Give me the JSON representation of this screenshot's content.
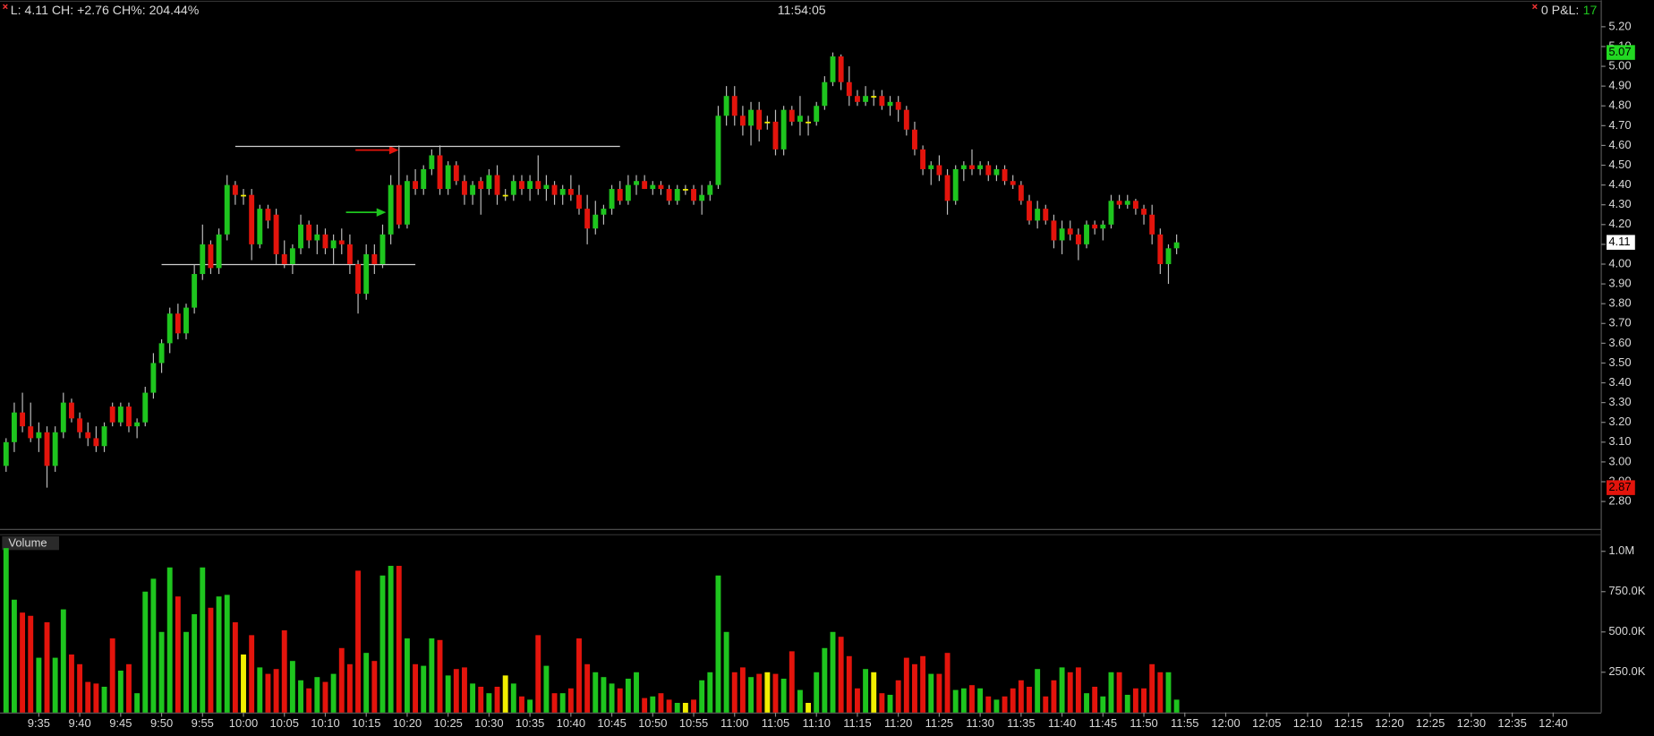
{
  "header": {
    "quote": "L: 4.11 CH: +2.76 CH%: 204.44%",
    "clock": "11:54:05",
    "pnl_label": "0 P&L:",
    "pnl_value": "17"
  },
  "chart_data": {
    "type": "candlestick",
    "volume_title": "Volume",
    "colors": {
      "up": "#1ec51e",
      "down": "#e3140c",
      "flat": "#f2ee00"
    },
    "categories": [
      null,
      null,
      null,
      null,
      "9:35",
      null,
      null,
      null,
      null,
      "9:40",
      null,
      null,
      null,
      null,
      "9:45",
      null,
      null,
      null,
      null,
      "9:50",
      null,
      null,
      null,
      null,
      "9:55",
      null,
      null,
      null,
      null,
      "10:00",
      null,
      null,
      null,
      null,
      "10:05",
      null,
      null,
      null,
      null,
      "10:10",
      null,
      null,
      null,
      null,
      "10:15",
      null,
      null,
      null,
      null,
      "10:20",
      null,
      null,
      null,
      null,
      "10:25",
      null,
      null,
      null,
      null,
      "10:30",
      null,
      null,
      null,
      null,
      "10:35",
      null,
      null,
      null,
      null,
      "10:40",
      null,
      null,
      null,
      null,
      "10:45",
      null,
      null,
      null,
      null,
      "10:50",
      null,
      null,
      null,
      null,
      "10:55",
      null,
      null,
      null,
      null,
      "11:00",
      null,
      null,
      null,
      null,
      "11:05",
      null,
      null,
      null,
      null,
      "11:10",
      null,
      null,
      null,
      null,
      "11:15",
      null,
      null,
      null,
      null,
      "11:20",
      null,
      null,
      null,
      null,
      "11:25",
      null,
      null,
      null,
      null,
      "11:30",
      null,
      null,
      null,
      null,
      "11:35",
      null,
      null,
      null,
      null,
      "11:40",
      null,
      null,
      null,
      null,
      "11:45",
      null,
      null,
      null,
      null,
      "11:50",
      null,
      null,
      null,
      null,
      "11:55",
      null,
      null,
      null,
      null,
      "12:00",
      null,
      null,
      null,
      null,
      "12:05",
      null,
      null,
      null,
      null,
      "12:10",
      null,
      null,
      null,
      null,
      "12:15",
      null,
      null,
      null,
      null,
      "12:20",
      null,
      null,
      null,
      null,
      "12:25",
      null,
      null,
      null,
      null,
      "12:30",
      null,
      null,
      null,
      null,
      "12:35",
      null,
      null,
      null,
      null,
      "12:40"
    ],
    "ohlc": [
      [
        2.98,
        3.12,
        2.95,
        3.1
      ],
      [
        3.1,
        3.3,
        3.05,
        3.25
      ],
      [
        3.25,
        3.35,
        3.15,
        3.18
      ],
      [
        3.18,
        3.3,
        3.1,
        3.12
      ],
      [
        3.12,
        3.2,
        3.05,
        3.15
      ],
      [
        3.15,
        3.18,
        2.87,
        2.98
      ],
      [
        2.98,
        3.18,
        2.95,
        3.15
      ],
      [
        3.15,
        3.35,
        3.12,
        3.3
      ],
      [
        3.3,
        3.32,
        3.2,
        3.22
      ],
      [
        3.22,
        3.25,
        3.12,
        3.15
      ],
      [
        3.15,
        3.2,
        3.08,
        3.12
      ],
      [
        3.12,
        3.18,
        3.05,
        3.08
      ],
      [
        3.08,
        3.2,
        3.05,
        3.18
      ],
      [
        3.28,
        3.3,
        3.18,
        3.2
      ],
      [
        3.2,
        3.3,
        3.18,
        3.28
      ],
      [
        3.28,
        3.3,
        3.15,
        3.18
      ],
      [
        3.18,
        3.22,
        3.12,
        3.2
      ],
      [
        3.2,
        3.38,
        3.18,
        3.35
      ],
      [
        3.35,
        3.55,
        3.32,
        3.5
      ],
      [
        3.5,
        3.62,
        3.45,
        3.6
      ],
      [
        3.6,
        3.78,
        3.55,
        3.75
      ],
      [
        3.75,
        3.8,
        3.62,
        3.65
      ],
      [
        3.65,
        3.8,
        3.62,
        3.78
      ],
      [
        3.78,
        4.0,
        3.75,
        3.95
      ],
      [
        3.95,
        4.2,
        3.92,
        4.1
      ],
      [
        4.1,
        4.12,
        3.95,
        3.98
      ],
      [
        3.98,
        4.18,
        3.95,
        4.15
      ],
      [
        4.15,
        4.45,
        4.12,
        4.4
      ],
      [
        4.4,
        4.42,
        4.3,
        4.35
      ],
      [
        4.35,
        4.38,
        4.3,
        4.35
      ],
      [
        4.35,
        4.38,
        4.02,
        4.1
      ],
      [
        4.1,
        4.3,
        4.08,
        4.28
      ],
      [
        4.28,
        4.3,
        4.18,
        4.22
      ],
      [
        4.25,
        4.28,
        4.0,
        4.05
      ],
      [
        4.05,
        4.12,
        3.98,
        4.0
      ],
      [
        4.0,
        4.1,
        3.95,
        4.08
      ],
      [
        4.08,
        4.25,
        4.05,
        4.2
      ],
      [
        4.2,
        4.22,
        4.08,
        4.12
      ],
      [
        4.12,
        4.2,
        4.05,
        4.15
      ],
      [
        4.15,
        4.18,
        4.05,
        4.08
      ],
      [
        4.08,
        4.15,
        4.0,
        4.12
      ],
      [
        4.12,
        4.18,
        4.05,
        4.1
      ],
      [
        4.1,
        4.15,
        3.95,
        4.0
      ],
      [
        4.0,
        4.02,
        3.75,
        3.85
      ],
      [
        3.85,
        4.1,
        3.82,
        4.05
      ],
      [
        4.05,
        4.1,
        3.95,
        4.0
      ],
      [
        4.0,
        4.2,
        3.98,
        4.15
      ],
      [
        4.15,
        4.45,
        4.1,
        4.4
      ],
      [
        4.4,
        4.6,
        4.18,
        4.2
      ],
      [
        4.2,
        4.45,
        4.18,
        4.42
      ],
      [
        4.42,
        4.48,
        4.35,
        4.38
      ],
      [
        4.38,
        4.5,
        4.35,
        4.48
      ],
      [
        4.48,
        4.58,
        4.45,
        4.55
      ],
      [
        4.55,
        4.6,
        4.35,
        4.38
      ],
      [
        4.38,
        4.52,
        4.35,
        4.5
      ],
      [
        4.5,
        4.52,
        4.4,
        4.42
      ],
      [
        4.42,
        4.45,
        4.3,
        4.35
      ],
      [
        4.35,
        4.42,
        4.3,
        4.4
      ],
      [
        4.42,
        4.44,
        4.25,
        4.38
      ],
      [
        4.38,
        4.48,
        4.35,
        4.45
      ],
      [
        4.45,
        4.5,
        4.3,
        4.35
      ],
      [
        4.35,
        4.38,
        4.32,
        4.35
      ],
      [
        4.35,
        4.45,
        4.32,
        4.42
      ],
      [
        4.42,
        4.45,
        4.35,
        4.38
      ],
      [
        4.38,
        4.45,
        4.32,
        4.42
      ],
      [
        4.42,
        4.55,
        4.35,
        4.38
      ],
      [
        4.38,
        4.45,
        4.32,
        4.4
      ],
      [
        4.4,
        4.42,
        4.3,
        4.35
      ],
      [
        4.35,
        4.4,
        4.3,
        4.38
      ],
      [
        4.38,
        4.45,
        4.32,
        4.35
      ],
      [
        4.35,
        4.4,
        4.25,
        4.28
      ],
      [
        4.28,
        4.35,
        4.1,
        4.18
      ],
      [
        4.18,
        4.32,
        4.15,
        4.25
      ],
      [
        4.25,
        4.3,
        4.2,
        4.28
      ],
      [
        4.28,
        4.4,
        4.25,
        4.38
      ],
      [
        4.38,
        4.42,
        4.3,
        4.32
      ],
      [
        4.32,
        4.45,
        4.3,
        4.4
      ],
      [
        4.4,
        4.45,
        4.35,
        4.42
      ],
      [
        4.42,
        4.45,
        4.38,
        4.38
      ],
      [
        4.38,
        4.42,
        4.35,
        4.4
      ],
      [
        4.4,
        4.42,
        4.35,
        4.38
      ],
      [
        4.38,
        4.4,
        4.3,
        4.32
      ],
      [
        4.32,
        4.4,
        4.3,
        4.38
      ],
      [
        4.38,
        4.4,
        4.35,
        4.38
      ],
      [
        4.38,
        4.4,
        4.3,
        4.32
      ],
      [
        4.32,
        4.4,
        4.25,
        4.35
      ],
      [
        4.35,
        4.42,
        4.32,
        4.4
      ],
      [
        4.4,
        4.8,
        4.38,
        4.75
      ],
      [
        4.75,
        4.9,
        4.7,
        4.85
      ],
      [
        4.85,
        4.9,
        4.7,
        4.75
      ],
      [
        4.75,
        4.8,
        4.65,
        4.7
      ],
      [
        4.7,
        4.82,
        4.6,
        4.78
      ],
      [
        4.78,
        4.82,
        4.62,
        4.68
      ],
      [
        4.72,
        4.75,
        4.68,
        4.72
      ],
      [
        4.72,
        4.78,
        4.55,
        4.58
      ],
      [
        4.58,
        4.8,
        4.55,
        4.78
      ],
      [
        4.78,
        4.8,
        4.7,
        4.72
      ],
      [
        4.72,
        4.85,
        4.65,
        4.75
      ],
      [
        4.72,
        4.75,
        4.65,
        4.72
      ],
      [
        4.72,
        4.82,
        4.7,
        4.8
      ],
      [
        4.8,
        4.95,
        4.78,
        4.92
      ],
      [
        4.92,
        5.07,
        4.9,
        5.05
      ],
      [
        5.05,
        5.06,
        4.88,
        4.92
      ],
      [
        4.92,
        5.0,
        4.8,
        4.85
      ],
      [
        4.85,
        4.88,
        4.8,
        4.82
      ],
      [
        4.82,
        4.9,
        4.8,
        4.85
      ],
      [
        4.85,
        4.88,
        4.8,
        4.85
      ],
      [
        4.85,
        4.88,
        4.78,
        4.8
      ],
      [
        4.8,
        4.85,
        4.75,
        4.82
      ],
      [
        4.82,
        4.85,
        4.72,
        4.78
      ],
      [
        4.78,
        4.8,
        4.65,
        4.68
      ],
      [
        4.68,
        4.72,
        4.55,
        4.58
      ],
      [
        4.58,
        4.6,
        4.45,
        4.48
      ],
      [
        4.48,
        4.52,
        4.4,
        4.5
      ],
      [
        4.5,
        4.55,
        4.42,
        4.45
      ],
      [
        4.45,
        4.48,
        4.25,
        4.32
      ],
      [
        4.32,
        4.5,
        4.3,
        4.48
      ],
      [
        4.48,
        4.52,
        4.42,
        4.5
      ],
      [
        4.5,
        4.58,
        4.45,
        4.48
      ],
      [
        4.48,
        4.52,
        4.45,
        4.5
      ],
      [
        4.5,
        4.52,
        4.42,
        4.45
      ],
      [
        4.45,
        4.5,
        4.42,
        4.48
      ],
      [
        4.48,
        4.5,
        4.4,
        4.42
      ],
      [
        4.42,
        4.45,
        4.38,
        4.4
      ],
      [
        4.4,
        4.42,
        4.3,
        4.32
      ],
      [
        4.32,
        4.35,
        4.2,
        4.22
      ],
      [
        4.22,
        4.32,
        4.18,
        4.28
      ],
      [
        4.28,
        4.3,
        4.2,
        4.22
      ],
      [
        4.22,
        4.25,
        4.08,
        4.12
      ],
      [
        4.12,
        4.22,
        4.05,
        4.18
      ],
      [
        4.18,
        4.22,
        4.12,
        4.15
      ],
      [
        4.15,
        4.18,
        4.02,
        4.1
      ],
      [
        4.1,
        4.22,
        4.08,
        4.2
      ],
      [
        4.2,
        4.22,
        4.15,
        4.18
      ],
      [
        4.18,
        4.22,
        4.12,
        4.2
      ],
      [
        4.2,
        4.35,
        4.18,
        4.32
      ],
      [
        4.32,
        4.35,
        4.28,
        4.3
      ],
      [
        4.3,
        4.35,
        4.28,
        4.32
      ],
      [
        4.32,
        4.33,
        4.25,
        4.28
      ],
      [
        4.28,
        4.3,
        4.2,
        4.25
      ],
      [
        4.25,
        4.3,
        4.1,
        4.15
      ],
      [
        4.15,
        4.18,
        3.95,
        4.0
      ],
      [
        4.0,
        4.1,
        3.9,
        4.08
      ],
      [
        4.08,
        4.15,
        4.05,
        4.11
      ],
      null,
      null,
      null,
      null,
      null,
      null,
      null,
      null,
      null,
      null,
      null,
      null,
      null,
      null,
      null,
      null,
      null,
      null,
      null,
      null,
      null,
      null,
      null,
      null,
      null,
      null,
      null,
      null,
      null,
      null,
      null,
      null,
      null,
      null,
      null,
      null,
      null,
      null,
      null,
      null,
      null,
      null,
      null,
      null,
      null,
      null
    ],
    "volume": [
      1020000,
      700000,
      620000,
      600000,
      340000,
      560000,
      340000,
      640000,
      360000,
      300000,
      190000,
      180000,
      160000,
      460000,
      260000,
      300000,
      120000,
      750000,
      830000,
      500000,
      900000,
      720000,
      500000,
      610000,
      900000,
      650000,
      720000,
      730000,
      560000,
      360000,
      480000,
      280000,
      240000,
      270000,
      510000,
      320000,
      200000,
      150000,
      220000,
      190000,
      240000,
      400000,
      300000,
      880000,
      370000,
      320000,
      850000,
      910000,
      910000,
      460000,
      300000,
      290000,
      460000,
      450000,
      230000,
      270000,
      280000,
      180000,
      160000,
      120000,
      160000,
      230000,
      180000,
      100000,
      80000,
      480000,
      290000,
      120000,
      120000,
      150000,
      460000,
      300000,
      250000,
      220000,
      180000,
      150000,
      210000,
      250000,
      90000,
      100000,
      120000,
      80000,
      60000,
      60000,
      80000,
      200000,
      250000,
      850000,
      500000,
      250000,
      280000,
      220000,
      240000,
      250000,
      240000,
      210000,
      380000,
      140000,
      60000,
      250000,
      400000,
      500000,
      470000,
      350000,
      150000,
      270000,
      250000,
      120000,
      110000,
      200000,
      340000,
      300000,
      350000,
      240000,
      240000,
      370000,
      140000,
      150000,
      170000,
      150000,
      100000,
      80000,
      100000,
      150000,
      200000,
      160000,
      270000,
      100000,
      200000,
      280000,
      250000,
      280000,
      120000,
      160000,
      100000,
      250000,
      250000,
      110000,
      150000,
      150000,
      300000,
      250000,
      250000,
      80000,
      null,
      null,
      null,
      null,
      null,
      null,
      null,
      null,
      null,
      null,
      null,
      null,
      null,
      null,
      null,
      null,
      null,
      null,
      null,
      null,
      null,
      null,
      null,
      null,
      null,
      null,
      null,
      null,
      null,
      null,
      null,
      null,
      null,
      null,
      null,
      null,
      null,
      null,
      null,
      null,
      null,
      null,
      null,
      null,
      null,
      null
    ],
    "ylim": [
      2.72,
      5.27
    ],
    "yticks": [
      {
        "value": 2.8,
        "label": "2.80"
      },
      {
        "value": 2.9,
        "label": "2.90"
      },
      {
        "value": 3.0,
        "label": "3.00"
      },
      {
        "value": 3.1,
        "label": "3.10"
      },
      {
        "value": 3.2,
        "label": "3.20"
      },
      {
        "value": 3.3,
        "label": "3.30"
      },
      {
        "value": 3.4,
        "label": "3.40"
      },
      {
        "value": 3.5,
        "label": "3.50"
      },
      {
        "value": 3.6,
        "label": "3.60"
      },
      {
        "value": 3.7,
        "label": "3.70"
      },
      {
        "value": 3.8,
        "label": "3.80"
      },
      {
        "value": 3.9,
        "label": "3.90"
      },
      {
        "value": 4.0,
        "label": "4.00"
      },
      {
        "value": 4.1,
        "label": "4.10"
      },
      {
        "value": 4.2,
        "label": "4.20"
      },
      {
        "value": 4.3,
        "label": "4.30"
      },
      {
        "value": 4.4,
        "label": "4.40"
      },
      {
        "value": 4.5,
        "label": "4.50"
      },
      {
        "value": 4.6,
        "label": "4.60"
      },
      {
        "value": 4.7,
        "label": "4.70"
      },
      {
        "value": 4.8,
        "label": "4.80"
      },
      {
        "value": 4.9,
        "label": "4.90"
      },
      {
        "value": 5.0,
        "label": "5.00"
      },
      {
        "value": 5.1,
        "label": "5.10"
      },
      {
        "value": 5.2,
        "label": "5.20"
      }
    ],
    "y2lim": [
      0,
      1080000
    ],
    "y2ticks": [
      {
        "value": 250000,
        "label": "250.0K"
      },
      {
        "value": 500000,
        "label": "500.0K"
      },
      {
        "value": 750000,
        "label": "750.0K"
      },
      {
        "value": 1000000,
        "label": "1.0M"
      }
    ],
    "price_markers": [
      {
        "value": 5.07,
        "color": "#22d822"
      },
      {
        "value": 4.11,
        "color": "#ffffff"
      },
      {
        "value": 2.87,
        "color": "#e3140c"
      }
    ],
    "hlines": [
      4.0,
      4.6
    ]
  }
}
